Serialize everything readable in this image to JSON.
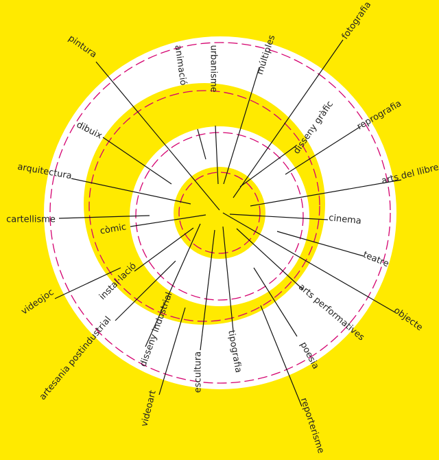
{
  "labels": [
    "pintura",
    "animació",
    "urbanisme",
    "múltiples",
    "fotografia",
    "disseny gràfic",
    "reprografia",
    "arts del llibre",
    "cinema",
    "teatre",
    "objecte",
    "arts performatives",
    "poesia",
    "reporterisme",
    "tipografia",
    "escultura",
    "videoart",
    "disseny industrial",
    "artesania postindustrial",
    "instal·lació",
    "videojoc",
    "cartellisme",
    "còmic",
    "arquitectura",
    "dibuix"
  ]
}
